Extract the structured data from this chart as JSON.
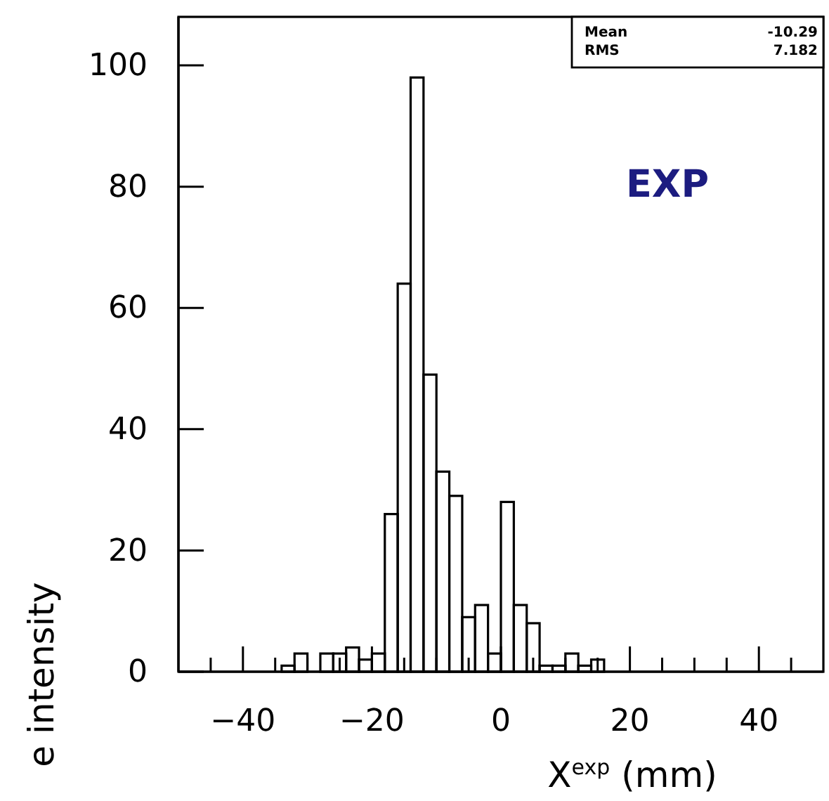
{
  "chart_data": {
    "type": "histogram",
    "xlabel": "X$^{exp}$ (mm)",
    "ylabel": "e intensity",
    "bins": [
      -34,
      -32,
      -30,
      -28,
      -26,
      -24,
      -22,
      -20,
      -18,
      -16,
      -14,
      -12,
      -10,
      -8,
      -6,
      -4,
      -2,
      0,
      2,
      4,
      6,
      8,
      10,
      12,
      14,
      16
    ],
    "values": [
      1,
      3,
      0,
      3,
      3,
      4,
      2,
      3,
      26,
      64,
      98,
      49,
      33,
      29,
      9,
      11,
      3,
      28,
      11,
      8,
      1,
      1,
      3,
      1,
      2
    ],
    "color": "#000000",
    "xlim": [
      -50,
      50
    ],
    "xticks": [
      {
        "value": -45,
        "label": null
      },
      -40,
      {
        "value": -35,
        "label": null
      },
      {
        "value": -30,
        "label": null
      },
      {
        "value": -25,
        "label": null
      },
      -20,
      {
        "value": -15,
        "label": null
      },
      {
        "value": -10,
        "label": null
      },
      {
        "value": -5,
        "label": null
      },
      0,
      {
        "value": 5,
        "label": null
      },
      {
        "value": 10,
        "label": null
      },
      {
        "value": 15,
        "label": null
      },
      20,
      {
        "value": 25,
        "label": null
      },
      {
        "value": 30,
        "label": null
      },
      {
        "value": 35,
        "label": null
      },
      40,
      {
        "value": 45,
        "label": null
      }
    ],
    "ylim": [
      0,
      108
    ],
    "yticks": [
      0,
      20,
      40,
      60,
      80,
      100
    ],
    "annotations": [
      "Mean -10.29",
      "RMS 7.182",
      "EXP"
    ]
  }
}
